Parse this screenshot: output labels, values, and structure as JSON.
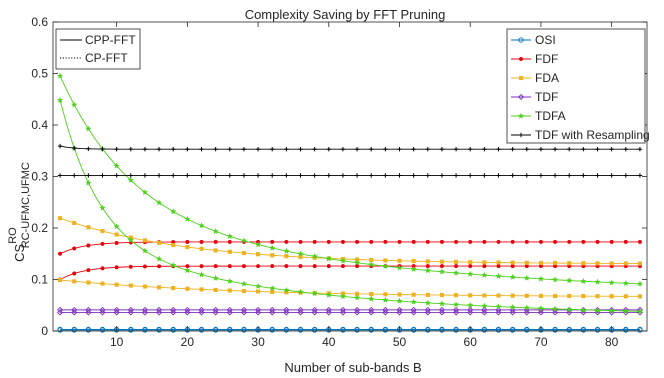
{
  "chart_data": {
    "type": "line",
    "title": "Complexity Saving by FFT Pruning",
    "xlabel": "Number of sub-bands B",
    "ylabel": {
      "main": "CS",
      "sup": "RO",
      "sub": "RC-UFMC,UFMC"
    },
    "xlim": [
      1,
      85
    ],
    "ylim": [
      0,
      0.6
    ],
    "xticks": [
      10,
      20,
      30,
      40,
      50,
      60,
      70,
      80
    ],
    "yticks": [
      0,
      0.1,
      0.2,
      0.3,
      0.4,
      0.5,
      0.6
    ],
    "grid": false,
    "legend_variants": {
      "position": "top-left",
      "entries": [
        {
          "label": "CPP-FFT",
          "style": "solid"
        },
        {
          "label": "CP-FFT",
          "style": "dotted"
        }
      ]
    },
    "legend_series": {
      "position": "top-right",
      "entries": [
        {
          "label": "OSI",
          "color": "#0072BD",
          "marker": "circle"
        },
        {
          "label": "FDF",
          "color": "#E8000B",
          "marker": "dot"
        },
        {
          "label": "FDA",
          "color": "#EDB120",
          "marker": "square"
        },
        {
          "label": "TDF",
          "color": "#7E2FBE",
          "marker": "diamond"
        },
        {
          "label": "TDFA",
          "color": "#4CD01C",
          "marker": "star"
        },
        {
          "label": "TDF with Resampling",
          "color": "#000000",
          "marker": "plus"
        }
      ]
    },
    "x": [
      2,
      84
    ],
    "series": [
      {
        "name": "OSI",
        "variant": "CPP-FFT",
        "color": "#0072BD",
        "marker": "circle",
        "model": "const",
        "a": 0.003
      },
      {
        "name": "OSI",
        "variant": "CP-FFT",
        "color": "#0072BD",
        "marker": "circle",
        "model": "const",
        "a": 0.002
      },
      {
        "name": "FDF",
        "variant": "CPP-FFT",
        "color": "#E8000B",
        "marker": "dot",
        "model": "rise",
        "a": 0.173,
        "b": 0.023,
        "k": 0.3
      },
      {
        "name": "FDF",
        "variant": "CP-FFT",
        "color": "#E8000B",
        "marker": "dot",
        "model": "rise",
        "a": 0.126,
        "b": 0.026,
        "k": 0.3
      },
      {
        "name": "FDA",
        "variant": "CPP-FFT",
        "color": "#EDB120",
        "marker": "square",
        "model": "decay",
        "a": 0.13,
        "b": 0.089,
        "k": 0.055
      },
      {
        "name": "FDA",
        "variant": "CP-FFT",
        "color": "#EDB120",
        "marker": "square",
        "model": "decay",
        "a": 0.066,
        "b": 0.033,
        "k": 0.04
      },
      {
        "name": "TDF",
        "variant": "CPP-FFT",
        "color": "#7E2FBE",
        "marker": "diamond",
        "model": "const",
        "a": 0.041
      },
      {
        "name": "TDF",
        "variant": "CP-FFT",
        "color": "#7E2FBE",
        "marker": "diamond",
        "model": "const",
        "a": 0.036
      },
      {
        "name": "TDFA",
        "variant": "CPP-FFT",
        "color": "#4CD01C",
        "marker": "star",
        "model": "decay2",
        "a": 0.065,
        "b": 0.27,
        "k": 0.1,
        "c": 0.16,
        "m": 0.022
      },
      {
        "name": "TDFA",
        "variant": "CP-FFT",
        "color": "#4CD01C",
        "marker": "star",
        "model": "decay2",
        "a": 0.028,
        "b": 0.28,
        "k": 0.18,
        "c": 0.14,
        "m": 0.032
      },
      {
        "name": "TDF with Resampling",
        "variant": "CPP-FFT",
        "color": "#000000",
        "marker": "plus",
        "model": "decay",
        "a": 0.353,
        "b": 0.006,
        "k": 0.5
      },
      {
        "name": "TDF with Resampling",
        "variant": "CP-FFT",
        "color": "#000000",
        "marker": "plus",
        "model": "const",
        "a": 0.302
      }
    ]
  }
}
